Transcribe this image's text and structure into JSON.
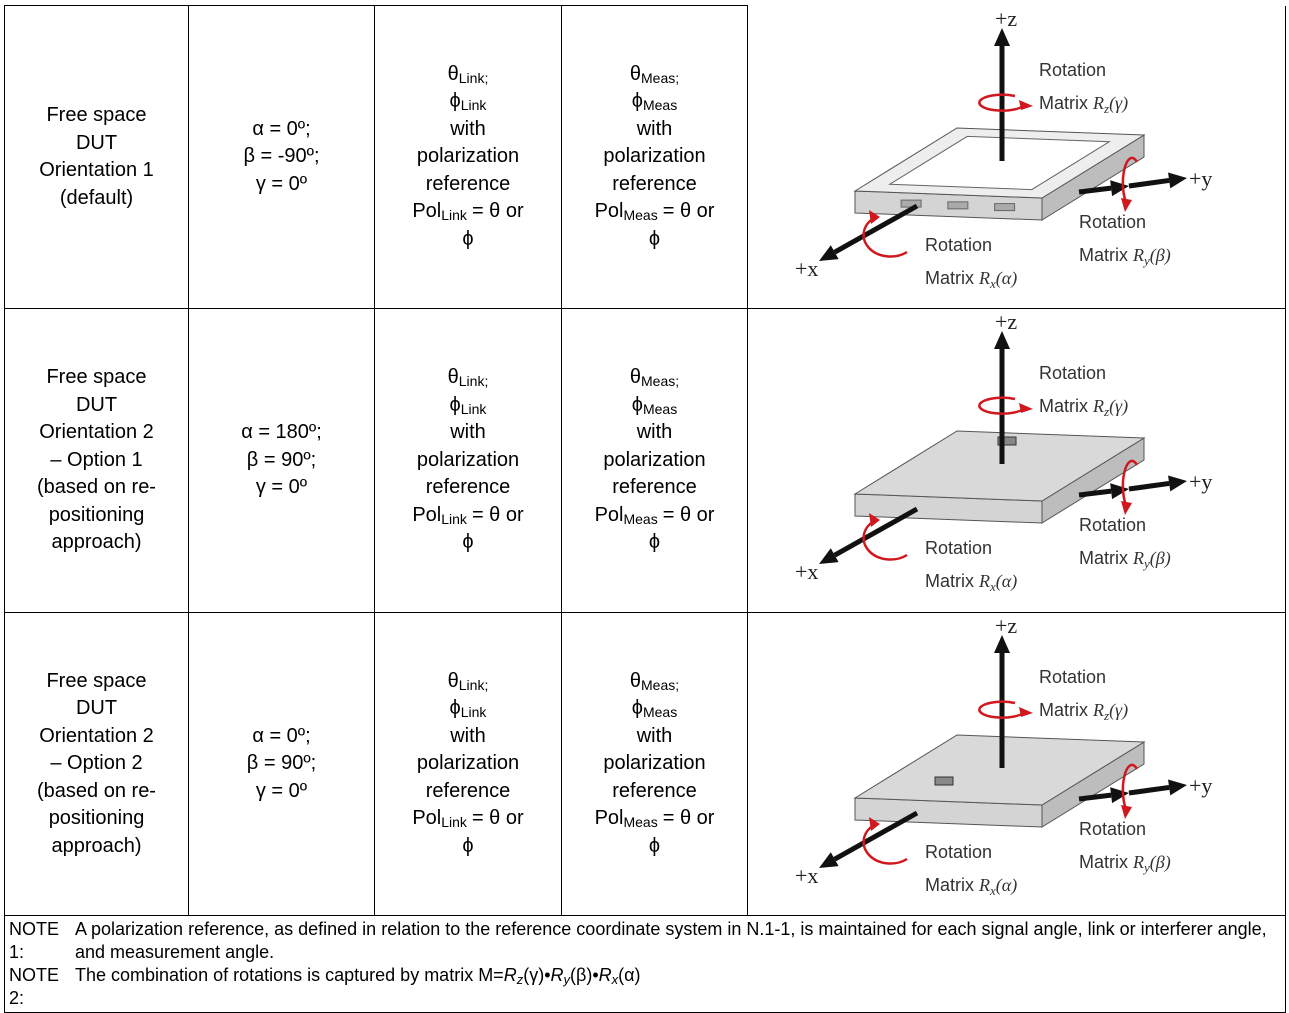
{
  "table": {
    "rows": [
      {
        "condition": [
          "Free space",
          "DUT",
          "Orientation 1",
          "(default)"
        ],
        "angles": [
          "α = 0º;",
          "β = -90º;",
          "γ = 0º"
        ],
        "link": {
          "theta": "θ",
          "theta_sub": "Link;",
          "phi": "ϕ",
          "phi_sub": "Link",
          "lines": [
            "with",
            "polarization",
            "reference"
          ],
          "pol": "Pol",
          "pol_sub": "Link",
          "pol_rest": "= θ or",
          "last": "ϕ"
        },
        "meas": {
          "theta": "θ",
          "theta_sub": "Meas;",
          "phi": "ϕ",
          "phi_sub": "Meas",
          "lines": [
            "with",
            "polarization",
            "reference"
          ],
          "pol": "Pol",
          "pol_sub": "Meas",
          "pol_rest": "= θ or",
          "last": "ϕ"
        },
        "diagram": {
          "z": "+z",
          "y": "+y",
          "x": "+x",
          "rot_z": {
            "title": "Rotation",
            "matrix": "Matrix",
            "symbol": "R",
            "sub": "z",
            "arg": "(γ)"
          },
          "rot_y": {
            "title": "Rotation",
            "matrix": "Matrix",
            "symbol": "R",
            "sub": "y",
            "arg": "(β)"
          },
          "rot_x": {
            "title": "Rotation",
            "matrix": "Matrix",
            "symbol": "R",
            "sub": "x",
            "arg": "(α)"
          }
        }
      },
      {
        "condition": [
          "Free space",
          "DUT",
          "Orientation 2",
          "– Option 1",
          "(based on re-",
          "positioning",
          "approach)"
        ],
        "angles": [
          "α = 180º;",
          "β = 90º;",
          "γ = 0º"
        ],
        "link": {
          "theta": "θ",
          "theta_sub": "Link;",
          "phi": "ϕ",
          "phi_sub": "Link",
          "lines": [
            "with",
            "polarization",
            "reference"
          ],
          "pol": "Pol",
          "pol_sub": "Link",
          "pol_rest": "= θ or",
          "last": "ϕ"
        },
        "meas": {
          "theta": "θ",
          "theta_sub": "Meas;",
          "phi": "ϕ",
          "phi_sub": "Meas",
          "lines": [
            "with",
            "polarization",
            "reference"
          ],
          "pol": "Pol",
          "pol_sub": "Meas",
          "pol_rest": "= θ or",
          "last": "ϕ"
        },
        "diagram": {
          "z": "+z",
          "y": "+y",
          "x": "+x",
          "rot_z": {
            "title": "Rotation",
            "matrix": "Matrix",
            "symbol": "R",
            "sub": "z",
            "arg": "(γ)"
          },
          "rot_y": {
            "title": "Rotation",
            "matrix": "Matrix",
            "symbol": "R",
            "sub": "y",
            "arg": "(β)"
          },
          "rot_x": {
            "title": "Rotation",
            "matrix": "Matrix",
            "symbol": "R",
            "sub": "x",
            "arg": "(α)"
          }
        }
      },
      {
        "condition": [
          "Free space",
          "DUT",
          "Orientation 2",
          "– Option 2",
          "(based on re-",
          "positioning",
          "approach)"
        ],
        "angles": [
          "α = 0º;",
          "β = 90º;",
          "γ = 0º"
        ],
        "link": {
          "theta": "θ",
          "theta_sub": "Link;",
          "phi": "ϕ",
          "phi_sub": "Link",
          "lines": [
            "with",
            "polarization",
            "reference"
          ],
          "pol": "Pol",
          "pol_sub": "Link",
          "pol_rest": "= θ or",
          "last": "ϕ"
        },
        "meas": {
          "theta": "θ",
          "theta_sub": "Meas;",
          "phi": "ϕ",
          "phi_sub": "Meas",
          "lines": [
            "with",
            "polarization",
            "reference"
          ],
          "pol": "Pol",
          "pol_sub": "Meas",
          "pol_rest": "= θ or",
          "last": "ϕ"
        },
        "diagram": {
          "z": "+z",
          "y": "+y",
          "x": "+x",
          "rot_z": {
            "title": "Rotation",
            "matrix": "Matrix",
            "symbol": "R",
            "sub": "z",
            "arg": "(γ)"
          },
          "rot_y": {
            "title": "Rotation",
            "matrix": "Matrix",
            "symbol": "R",
            "sub": "y",
            "arg": "(β)"
          },
          "rot_x": {
            "title": "Rotation",
            "matrix": "Matrix",
            "symbol": "R",
            "sub": "x",
            "arg": "(α)"
          }
        }
      }
    ],
    "notes": [
      {
        "label": "NOTE 1:",
        "text": [
          "A polarization reference, as defined in relation to the reference coordinate system in N.1-1, is maintained for each signal angle, link or interferer angle, and measurement angle."
        ]
      },
      {
        "label": "NOTE 2:",
        "text": [
          "The combination of rotations is captured by matrix M=",
          "R",
          "z",
          "(γ)•",
          "R",
          "y",
          "(β)•",
          "R",
          "x",
          "(α)"
        ]
      }
    ]
  }
}
